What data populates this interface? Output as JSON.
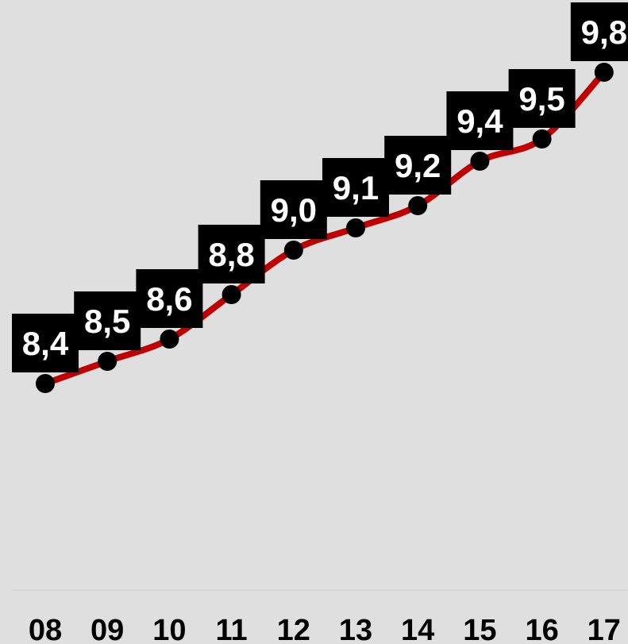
{
  "chart_data": {
    "type": "line",
    "title": "",
    "xlabel": "",
    "ylabel": "",
    "categories": [
      "08",
      "09",
      "10",
      "11",
      "12",
      "13",
      "14",
      "15",
      "16",
      "17"
    ],
    "series": [
      {
        "values": [
          8.4,
          8.5,
          8.6,
          8.8,
          9.0,
          9.1,
          9.2,
          9.4,
          9.5,
          9.8
        ],
        "labels": [
          "8,4",
          "8,5",
          "8,6",
          "8,8",
          "9,0",
          "9,1",
          "9,2",
          "9,4",
          "9,5",
          "9,8"
        ]
      }
    ],
    "grid": false,
    "legend": "none",
    "colors": {
      "background": "#e0dfe0",
      "line": "#c00000",
      "marker": "#000000",
      "label_box": "#000000",
      "label_text": "#ffffff",
      "axis": "#d6d6d6"
    }
  }
}
